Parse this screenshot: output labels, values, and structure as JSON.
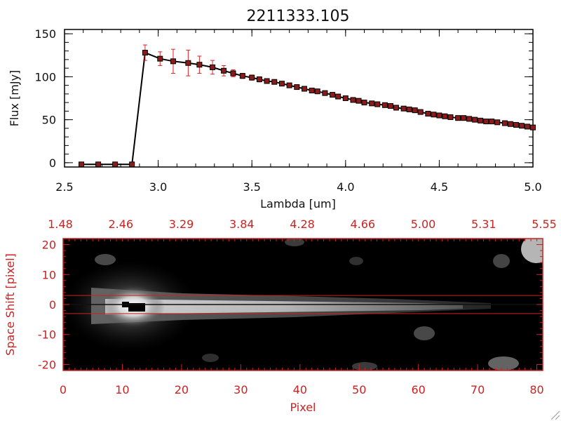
{
  "title": "2211333.105",
  "colors": {
    "axis_red": "#cc2222",
    "error_bar": "#dd2222",
    "marker": "#8b1a1a",
    "line": "#000000"
  },
  "chart_data": [
    {
      "type": "line",
      "xlabel": "Lambda [um]",
      "ylabel": "Flux [mJy]",
      "xlim": [
        2.5,
        5.0
      ],
      "ylim": [
        -5,
        155
      ],
      "xticks": [
        "2.5",
        "3.0",
        "3.5",
        "4.0",
        "4.5",
        "5.0"
      ],
      "yticks": [
        "0",
        "50",
        "100",
        "150"
      ],
      "x": [
        2.59,
        2.68,
        2.77,
        2.86,
        2.93,
        3.01,
        3.08,
        3.16,
        3.22,
        3.29,
        3.35,
        3.4,
        3.45,
        3.5,
        3.54,
        3.58,
        3.62,
        3.66,
        3.7,
        3.74,
        3.78,
        3.82,
        3.85,
        3.89,
        3.93,
        3.96,
        4.0,
        4.04,
        4.07,
        4.1,
        4.14,
        4.17,
        4.21,
        4.24,
        4.27,
        4.31,
        4.34,
        4.37,
        4.4,
        4.44,
        4.47,
        4.5,
        4.53,
        4.56,
        4.6,
        4.63,
        4.66,
        4.69,
        4.72,
        4.75,
        4.78,
        4.81,
        4.85,
        4.88,
        4.91,
        4.94,
        4.97,
        5.0
      ],
      "y": [
        -2,
        -2,
        -2,
        -2,
        128,
        121,
        118,
        116,
        114,
        111,
        107,
        104,
        101,
        99,
        97,
        95,
        94,
        92,
        90,
        88,
        86,
        84,
        83,
        81,
        79,
        77,
        75,
        73,
        72,
        70,
        69,
        68,
        67,
        66,
        64,
        63,
        62,
        61,
        59,
        57,
        56,
        55,
        54,
        53,
        52,
        52,
        51,
        50,
        49,
        48,
        48,
        47,
        46,
        45,
        44,
        43,
        42,
        41
      ],
      "yerr": [
        0,
        0,
        0,
        0,
        9,
        8,
        14,
        15,
        10,
        8,
        6,
        4,
        3,
        3,
        3,
        2,
        2,
        2,
        2,
        2,
        2,
        2,
        2,
        2,
        2,
        2,
        2,
        2,
        2,
        2,
        2,
        2,
        2,
        2,
        2,
        2,
        2,
        2,
        2,
        2,
        2,
        2,
        2,
        2,
        2,
        2,
        2,
        2,
        2,
        2,
        2,
        2,
        2,
        2,
        2,
        2,
        2,
        2
      ]
    },
    {
      "type": "heatmap",
      "xlabel": "Pixel",
      "ylabel": "Space Shift [pixel]",
      "xlim": [
        0,
        81
      ],
      "ylim": [
        -22,
        22
      ],
      "xticks": [
        "0",
        "10",
        "20",
        "30",
        "40",
        "50",
        "60",
        "70",
        "80"
      ],
      "yticks": [
        "20",
        "10",
        "0",
        "-10",
        "-20"
      ],
      "top_ticks": [
        "1.48",
        "2.46",
        "3.29",
        "3.84",
        "4.28",
        "4.66",
        "5.00",
        "5.31",
        "5.55"
      ],
      "extraction_aperture": [
        -3,
        3
      ],
      "trace_center": 0
    }
  ]
}
